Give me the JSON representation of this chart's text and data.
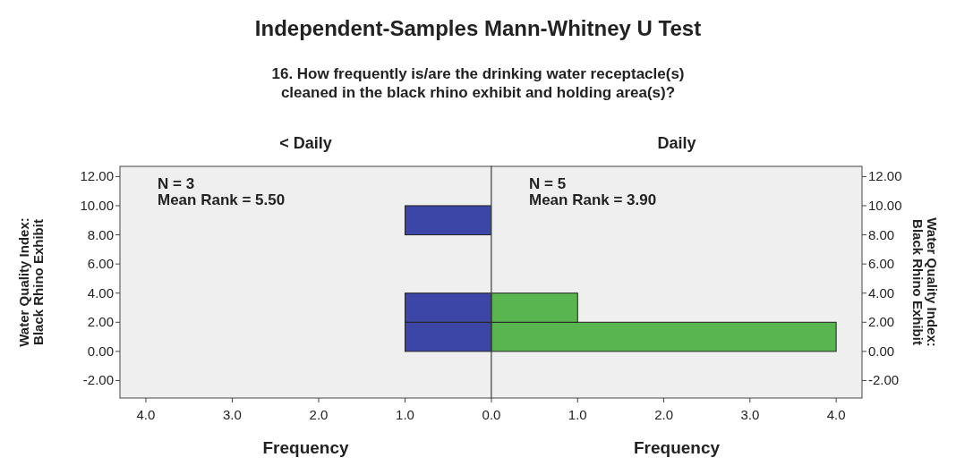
{
  "chart_data": [
    {
      "type": "histogram",
      "orientation": "horizontal",
      "title": "Independent-Samples Mann-Whitney U Test",
      "subtitle": "16. How frequently is/are the drinking water receptacle(s)\ncleaned in the black rhino exhibit and holding area(s)?",
      "annotations": [
        "< Daily",
        "N = 3",
        "Mean Rank = 5.50"
      ],
      "xlabel": "Frequency",
      "ylabel": "Water Quality Index:\nBlack Rhino Exhibit",
      "bins": [
        0,
        2,
        4,
        6,
        8,
        10
      ],
      "values": [
        1,
        1,
        0,
        0,
        1
      ],
      "color": "#3b46a6",
      "xlim": [
        4.3,
        0
      ],
      "xticks": [
        {
          "value": 4,
          "label": "4.0"
        },
        {
          "value": 3,
          "label": "3.0"
        },
        {
          "value": 2,
          "label": "2.0"
        },
        {
          "value": 1,
          "label": "1.0"
        }
      ],
      "ylim": [
        -3.2,
        12.7
      ],
      "yticks": [
        {
          "value": -2,
          "label": "-2.00"
        },
        {
          "value": 0,
          "label": "0.00"
        },
        {
          "value": 2,
          "label": "2.00"
        },
        {
          "value": 4,
          "label": "4.00"
        },
        {
          "value": 6,
          "label": "6.00"
        },
        {
          "value": 8,
          "label": "8.00"
        },
        {
          "value": 10,
          "label": "10.00"
        },
        {
          "value": 12,
          "label": "12.00"
        }
      ],
      "grid": false
    },
    {
      "type": "histogram",
      "orientation": "horizontal",
      "annotations": [
        "Daily",
        "N = 5",
        "Mean Rank = 3.90"
      ],
      "xlabel": "Frequency",
      "ylabel": "Water Quality Index:\nBlack Rhino Exhibit",
      "bins": [
        0,
        2,
        4,
        6,
        8,
        10
      ],
      "values": [
        4,
        1,
        0,
        0,
        0
      ],
      "color": "#59b54f",
      "xlim": [
        0,
        4.3
      ],
      "xticks": [
        {
          "value": 0,
          "label": "0.0"
        },
        {
          "value": 1,
          "label": "1.0"
        },
        {
          "value": 2,
          "label": "2.0"
        },
        {
          "value": 3,
          "label": "3.0"
        },
        {
          "value": 4,
          "label": "4.0"
        }
      ],
      "ylim": [
        -3.2,
        12.7
      ],
      "yticks": [
        {
          "value": -2,
          "label": "-2.00"
        },
        {
          "value": 0,
          "label": "0.00"
        },
        {
          "value": 2,
          "label": "2.00"
        },
        {
          "value": 4,
          "label": "4.00"
        },
        {
          "value": 6,
          "label": "6.00"
        },
        {
          "value": 8,
          "label": "8.00"
        },
        {
          "value": 10,
          "label": "10.00"
        },
        {
          "value": 12,
          "label": "12.00"
        }
      ],
      "grid": false
    }
  ]
}
